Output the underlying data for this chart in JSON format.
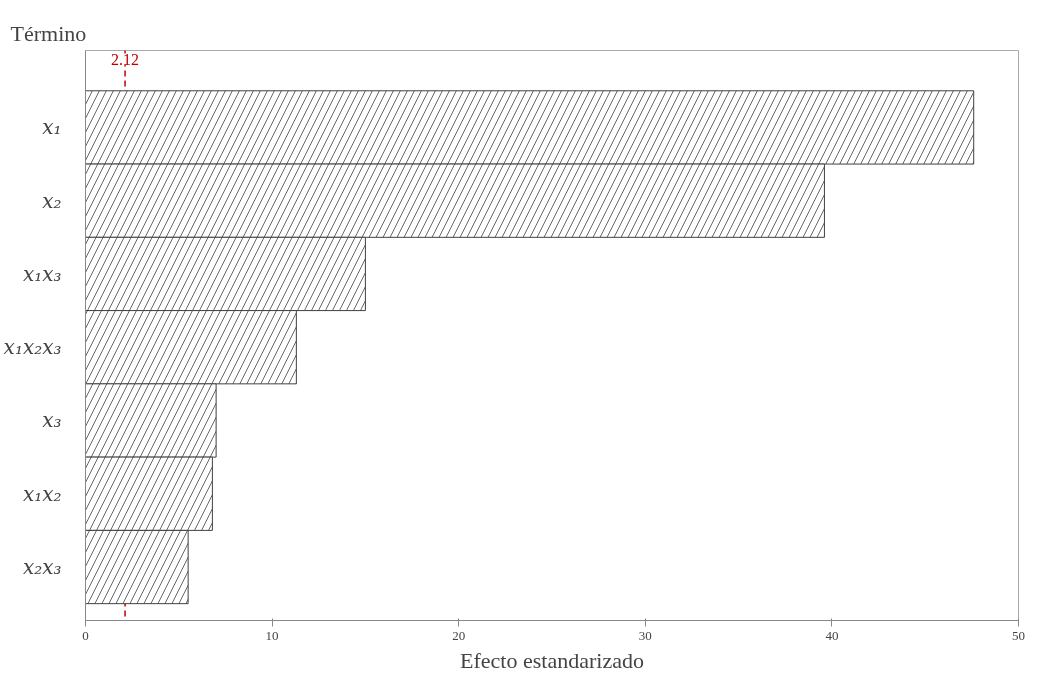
{
  "chart_data": {
    "type": "bar",
    "orientation": "horizontal",
    "ylabel": "Término",
    "xlabel": "Efecto estandarizado",
    "categories": [
      "x₁",
      "x₂",
      "x₁x₃",
      "x₁x₂x₃",
      "x₃",
      "x₁x₂",
      "x₂x₃"
    ],
    "values": [
      47.6,
      39.6,
      15.0,
      11.3,
      7.0,
      6.8,
      5.5
    ],
    "color": "#404040",
    "xlim": [
      0,
      50
    ],
    "xticks": [
      0,
      10,
      20,
      30,
      40,
      50
    ],
    "ref_lines": [
      {
        "axis": "x",
        "value": 2.12,
        "label": "2.12",
        "color": "#c00000",
        "line_style": "dashed"
      }
    ]
  }
}
